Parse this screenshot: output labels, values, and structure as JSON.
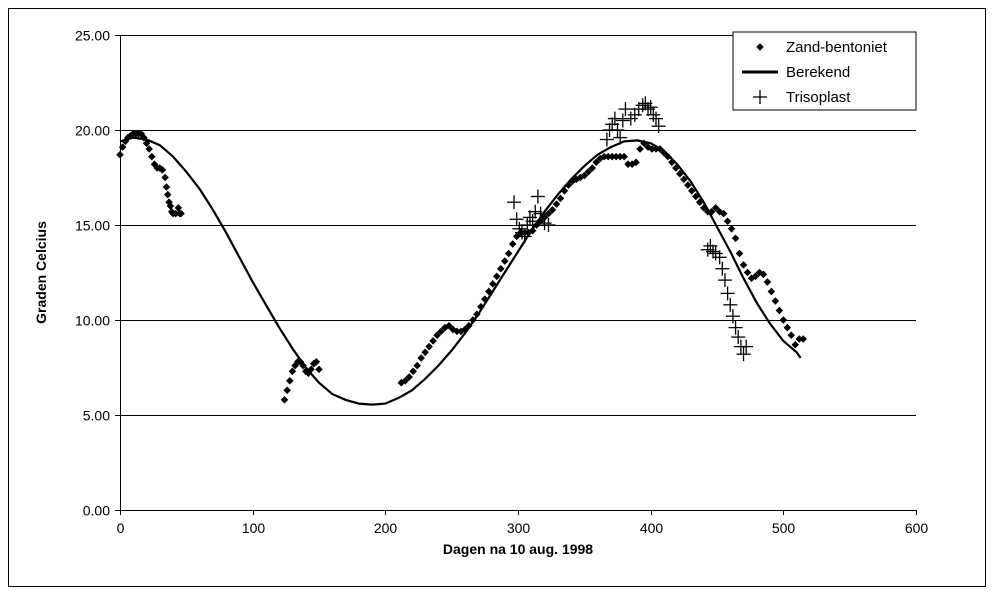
{
  "chart_data": {
    "type": "scatter",
    "title": "",
    "xlabel": "Dagen na 10 aug. 1998",
    "ylabel": "Graden Celcius",
    "xlim": [
      0,
      600
    ],
    "ylim": [
      0,
      25
    ],
    "x_ticks": [
      "0",
      "100",
      "200",
      "300",
      "400",
      "500",
      "600"
    ],
    "y_ticks": [
      "0.00",
      "5.00",
      "10.00",
      "15.00",
      "20.00",
      "25.00"
    ],
    "grid": "horizontal",
    "legend_position": "top-right",
    "colors": {
      "series": "#000000",
      "grid": "#000000",
      "background": "#ffffff"
    },
    "series": [
      {
        "name": "Zand-bentoniet",
        "marker": "diamond",
        "points": [
          [
            0,
            18.7
          ],
          [
            2,
            19.1
          ],
          [
            4,
            19.4
          ],
          [
            6,
            19.6
          ],
          [
            8,
            19.7
          ],
          [
            10,
            19.8
          ],
          [
            12,
            19.8
          ],
          [
            14,
            19.8
          ],
          [
            16,
            19.8
          ],
          [
            18,
            19.6
          ],
          [
            20,
            19.3
          ],
          [
            22,
            19.0
          ],
          [
            24,
            18.6
          ],
          [
            26,
            18.2
          ],
          [
            28,
            18.0
          ],
          [
            30,
            18.0
          ],
          [
            32,
            17.9
          ],
          [
            34,
            17.5
          ],
          [
            35,
            17.0
          ],
          [
            36,
            16.6
          ],
          [
            37,
            16.2
          ],
          [
            38,
            16.0
          ],
          [
            39,
            15.7
          ],
          [
            40,
            15.6
          ],
          [
            42,
            15.6
          ],
          [
            44,
            15.9
          ],
          [
            45,
            15.6
          ],
          [
            46,
            15.6
          ],
          [
            124,
            5.8
          ],
          [
            126,
            6.3
          ],
          [
            128,
            6.8
          ],
          [
            130,
            7.3
          ],
          [
            132,
            7.6
          ],
          [
            134,
            7.8
          ],
          [
            136,
            7.8
          ],
          [
            138,
            7.6
          ],
          [
            140,
            7.3
          ],
          [
            142,
            7.2
          ],
          [
            144,
            7.4
          ],
          [
            146,
            7.7
          ],
          [
            148,
            7.8
          ],
          [
            150,
            7.4
          ],
          [
            212,
            6.7
          ],
          [
            215,
            6.8
          ],
          [
            218,
            7.0
          ],
          [
            221,
            7.3
          ],
          [
            224,
            7.6
          ],
          [
            227,
            8.0
          ],
          [
            230,
            8.3
          ],
          [
            233,
            8.6
          ],
          [
            236,
            8.9
          ],
          [
            239,
            9.2
          ],
          [
            242,
            9.4
          ],
          [
            245,
            9.6
          ],
          [
            248,
            9.7
          ],
          [
            251,
            9.5
          ],
          [
            254,
            9.4
          ],
          [
            257,
            9.4
          ],
          [
            260,
            9.5
          ],
          [
            263,
            9.7
          ],
          [
            266,
            10.0
          ],
          [
            269,
            10.3
          ],
          [
            272,
            10.7
          ],
          [
            275,
            11.1
          ],
          [
            278,
            11.5
          ],
          [
            281,
            11.9
          ],
          [
            284,
            12.3
          ],
          [
            287,
            12.7
          ],
          [
            290,
            13.1
          ],
          [
            293,
            13.5
          ],
          [
            296,
            14.0
          ],
          [
            299,
            14.4
          ],
          [
            302,
            14.6
          ],
          [
            305,
            14.6
          ],
          [
            308,
            14.6
          ],
          [
            311,
            14.7
          ],
          [
            314,
            15.0
          ],
          [
            317,
            15.2
          ],
          [
            320,
            15.4
          ],
          [
            323,
            15.6
          ],
          [
            326,
            15.8
          ],
          [
            329,
            16.1
          ],
          [
            332,
            16.4
          ],
          [
            335,
            16.8
          ],
          [
            338,
            17.1
          ],
          [
            341,
            17.3
          ],
          [
            344,
            17.4
          ],
          [
            347,
            17.5
          ],
          [
            350,
            17.6
          ],
          [
            353,
            17.8
          ],
          [
            356,
            18.0
          ],
          [
            359,
            18.3
          ],
          [
            362,
            18.5
          ],
          [
            365,
            18.6
          ],
          [
            368,
            18.6
          ],
          [
            371,
            18.6
          ],
          [
            374,
            18.6
          ],
          [
            377,
            18.6
          ],
          [
            380,
            18.6
          ],
          [
            383,
            18.2
          ],
          [
            386,
            18.2
          ],
          [
            389,
            18.3
          ],
          [
            392,
            19.0
          ],
          [
            395,
            19.3
          ],
          [
            398,
            19.1
          ],
          [
            401,
            19.0
          ],
          [
            404,
            19.0
          ],
          [
            407,
            19.0
          ],
          [
            410,
            18.8
          ],
          [
            413,
            18.6
          ],
          [
            416,
            18.3
          ],
          [
            419,
            18.0
          ],
          [
            422,
            17.7
          ],
          [
            425,
            17.4
          ],
          [
            428,
            17.1
          ],
          [
            431,
            16.8
          ],
          [
            434,
            16.5
          ],
          [
            437,
            16.2
          ],
          [
            440,
            15.9
          ],
          [
            443,
            15.7
          ],
          [
            446,
            15.7
          ],
          [
            449,
            15.9
          ],
          [
            452,
            15.7
          ],
          [
            455,
            15.6
          ],
          [
            458,
            15.2
          ],
          [
            461,
            14.8
          ],
          [
            464,
            14.3
          ],
          [
            467,
            13.5
          ],
          [
            470,
            12.9
          ],
          [
            473,
            12.5
          ],
          [
            476,
            12.2
          ],
          [
            479,
            12.3
          ],
          [
            482,
            12.5
          ],
          [
            485,
            12.4
          ],
          [
            488,
            12.0
          ],
          [
            491,
            11.5
          ],
          [
            494,
            11.0
          ],
          [
            497,
            10.5
          ],
          [
            500,
            10.0
          ],
          [
            503,
            9.6
          ],
          [
            506,
            9.2
          ],
          [
            509,
            8.7
          ],
          [
            512,
            9.0
          ],
          [
            515,
            9.0
          ]
        ]
      },
      {
        "name": "Berekend",
        "marker": "line",
        "points": [
          [
            0,
            19.4
          ],
          [
            10,
            19.6
          ],
          [
            20,
            19.5
          ],
          [
            30,
            19.2
          ],
          [
            40,
            18.6
          ],
          [
            50,
            17.8
          ],
          [
            60,
            16.9
          ],
          [
            70,
            15.8
          ],
          [
            80,
            14.6
          ],
          [
            90,
            13.3
          ],
          [
            100,
            12.0
          ],
          [
            110,
            10.8
          ],
          [
            120,
            9.6
          ],
          [
            130,
            8.5
          ],
          [
            140,
            7.5
          ],
          [
            150,
            6.7
          ],
          [
            160,
            6.1
          ],
          [
            170,
            5.8
          ],
          [
            180,
            5.6
          ],
          [
            190,
            5.55
          ],
          [
            200,
            5.6
          ],
          [
            210,
            5.9
          ],
          [
            220,
            6.3
          ],
          [
            230,
            6.9
          ],
          [
            240,
            7.6
          ],
          [
            250,
            8.4
          ],
          [
            260,
            9.3
          ],
          [
            270,
            10.3
          ],
          [
            280,
            11.4
          ],
          [
            290,
            12.5
          ],
          [
            300,
            13.6
          ],
          [
            310,
            14.7
          ],
          [
            320,
            15.7
          ],
          [
            330,
            16.6
          ],
          [
            340,
            17.4
          ],
          [
            350,
            18.1
          ],
          [
            360,
            18.7
          ],
          [
            370,
            19.1
          ],
          [
            380,
            19.4
          ],
          [
            390,
            19.45
          ],
          [
            400,
            19.3
          ],
          [
            410,
            18.9
          ],
          [
            420,
            18.2
          ],
          [
            430,
            17.3
          ],
          [
            440,
            16.2
          ],
          [
            450,
            14.9
          ],
          [
            460,
            13.6
          ],
          [
            470,
            12.2
          ],
          [
            480,
            10.9
          ],
          [
            490,
            9.8
          ],
          [
            500,
            8.9
          ],
          [
            510,
            8.3
          ],
          [
            513,
            8.0
          ]
        ]
      },
      {
        "name": "Trisoplast",
        "marker": "plus",
        "points": [
          [
            297,
            16.2
          ],
          [
            299,
            15.3
          ],
          [
            301,
            14.8
          ],
          [
            303,
            14.6
          ],
          [
            305,
            14.4
          ],
          [
            307,
            15.0
          ],
          [
            309,
            15.4
          ],
          [
            311,
            15.2
          ],
          [
            313,
            15.7
          ],
          [
            315,
            16.5
          ],
          [
            317,
            15.6
          ],
          [
            320,
            15.1
          ],
          [
            323,
            15.0
          ],
          [
            367,
            19.5
          ],
          [
            369,
            20.0
          ],
          [
            371,
            20.3
          ],
          [
            373,
            20.6
          ],
          [
            375,
            20.0
          ],
          [
            377,
            19.6
          ],
          [
            379,
            20.5
          ],
          [
            381,
            21.1
          ],
          [
            385,
            20.6
          ],
          [
            388,
            20.8
          ],
          [
            391,
            21.1
          ],
          [
            394,
            21.3
          ],
          [
            396,
            21.4
          ],
          [
            398,
            21.1
          ],
          [
            400,
            21.2
          ],
          [
            402,
            20.8
          ],
          [
            404,
            20.6
          ],
          [
            406,
            20.2
          ],
          [
            443,
            13.7
          ],
          [
            445,
            13.9
          ],
          [
            447,
            13.6
          ],
          [
            449,
            13.5
          ],
          [
            452,
            13.3
          ],
          [
            454,
            12.7
          ],
          [
            456,
            12.1
          ],
          [
            458,
            11.4
          ],
          [
            460,
            10.8
          ],
          [
            462,
            10.2
          ],
          [
            464,
            9.6
          ],
          [
            466,
            9.1
          ],
          [
            468,
            8.6
          ],
          [
            470,
            8.2
          ],
          [
            472,
            8.6
          ]
        ]
      }
    ]
  }
}
